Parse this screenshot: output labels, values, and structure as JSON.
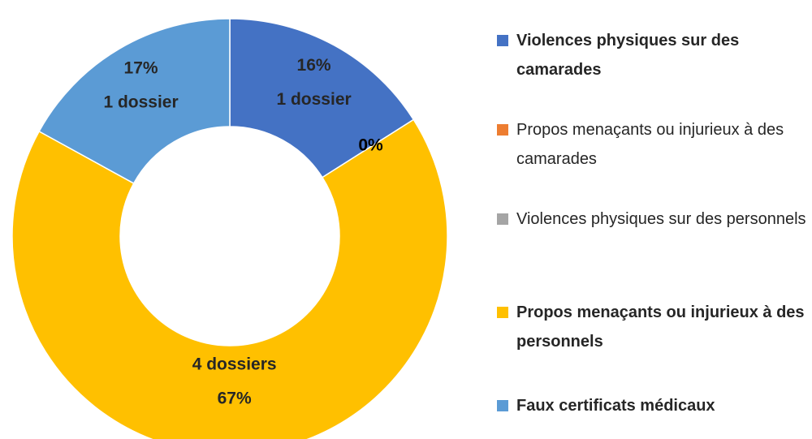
{
  "chart_data": {
    "type": "donut",
    "categories": [
      "Violences physiques sur des camarades",
      "Propos menaçants ou injurieux à des camarades",
      "Violences physiques sur des personnels",
      "Propos menaçants ou injurieux à des personnels",
      "Faux certificats médicaux"
    ],
    "values": [
      16,
      0,
      0,
      67,
      17
    ],
    "value_labels": [
      "16%",
      "0%",
      null,
      "67%",
      "17%"
    ],
    "count_labels": [
      "1 dossier",
      null,
      null,
      "4 dossiers",
      "1 dossier"
    ],
    "colors": [
      "#4472c4",
      "#ed7d31",
      "#a5a5a5",
      "#ffc000",
      "#5b9bd5"
    ],
    "legend": "right"
  }
}
